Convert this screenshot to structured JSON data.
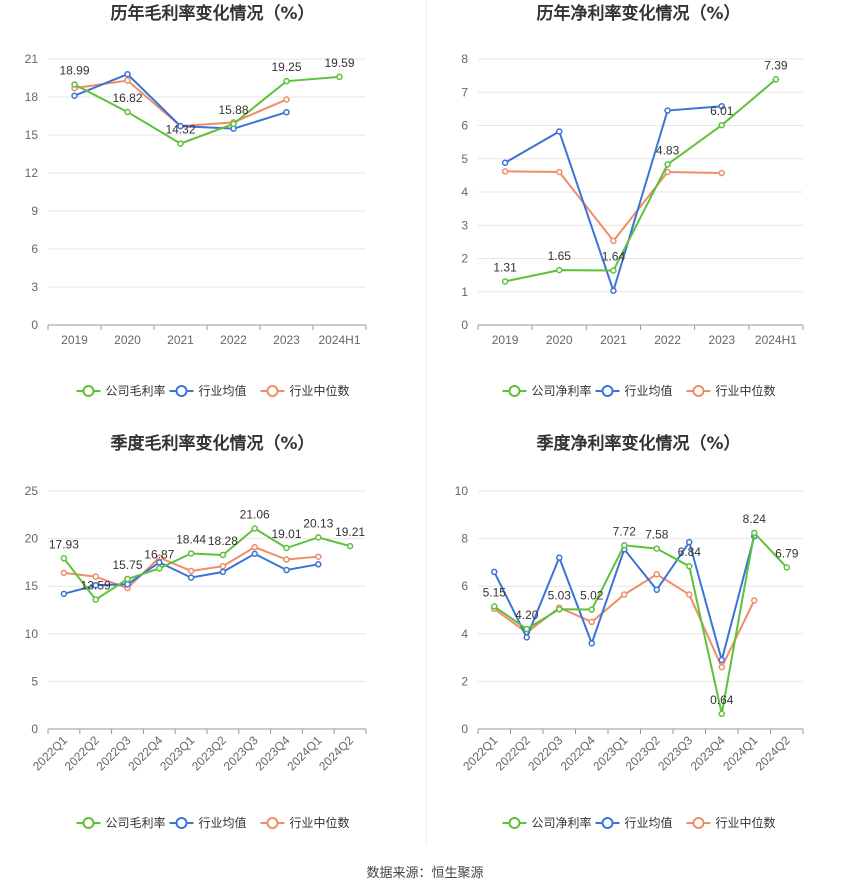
{
  "source": "数据来源：恒生聚源",
  "colors": {
    "company": "#5cc23c",
    "avg": "#3b73d6",
    "median": "#f08c68"
  },
  "chart_data": [
    {
      "type": "line",
      "title": "历年毛利率变化情况（%）",
      "categories": [
        "2019",
        "2020",
        "2021",
        "2022",
        "2023",
        "2024H1"
      ],
      "ylim": [
        0,
        21
      ],
      "yticks": [
        0,
        3,
        6,
        9,
        12,
        15,
        18,
        21
      ],
      "rotate": false,
      "series": [
        {
          "name": "公司毛利率",
          "key": "company",
          "values": [
            18.99,
            16.82,
            14.32,
            15.88,
            19.25,
            19.59
          ],
          "labels": true
        },
        {
          "name": "行业均值",
          "key": "avg",
          "values": [
            18.1,
            19.8,
            15.7,
            15.5,
            16.8,
            null
          ],
          "labels": false
        },
        {
          "name": "行业中位数",
          "key": "median",
          "values": [
            18.7,
            19.3,
            15.7,
            16.0,
            17.8,
            null
          ],
          "labels": false
        }
      ]
    },
    {
      "type": "line",
      "title": "历年净利率变化情况（%）",
      "categories": [
        "2019",
        "2020",
        "2021",
        "2022",
        "2023",
        "2024H1"
      ],
      "ylim": [
        0,
        8
      ],
      "yticks": [
        0,
        1,
        2,
        3,
        4,
        5,
        6,
        7,
        8
      ],
      "rotate": false,
      "series": [
        {
          "name": "公司净利率",
          "key": "company",
          "values": [
            1.31,
            1.65,
            1.64,
            4.83,
            6.01,
            7.39
          ],
          "labels": true
        },
        {
          "name": "行业均值",
          "key": "avg",
          "values": [
            4.88,
            5.82,
            1.03,
            6.45,
            6.58,
            null
          ],
          "labels": false
        },
        {
          "name": "行业中位数",
          "key": "median",
          "values": [
            4.62,
            4.6,
            2.53,
            4.6,
            4.57,
            null
          ],
          "labels": false
        }
      ]
    },
    {
      "type": "line",
      "title": "季度毛利率变化情况（%）",
      "categories": [
        "2022Q1",
        "2022Q2",
        "2022Q3",
        "2022Q4",
        "2023Q1",
        "2023Q2",
        "2023Q3",
        "2023Q4",
        "2024Q1",
        "2024Q2"
      ],
      "ylim": [
        0,
        25
      ],
      "yticks": [
        0,
        5,
        10,
        15,
        20,
        25
      ],
      "rotate": true,
      "series": [
        {
          "name": "公司毛利率",
          "key": "company",
          "values": [
            17.93,
            13.59,
            15.75,
            16.87,
            18.44,
            18.28,
            21.06,
            19.01,
            20.13,
            19.21
          ],
          "labels": true
        },
        {
          "name": "行业均值",
          "key": "avg",
          "values": [
            14.2,
            15.1,
            15.2,
            17.5,
            15.9,
            16.5,
            18.4,
            16.7,
            17.3,
            null
          ],
          "labels": false
        },
        {
          "name": "行业中位数",
          "key": "median",
          "values": [
            16.4,
            16.0,
            14.8,
            18.0,
            16.6,
            17.1,
            19.1,
            17.8,
            18.1,
            null
          ],
          "labels": false
        }
      ]
    },
    {
      "type": "line",
      "title": "季度净利率变化情况（%）",
      "categories": [
        "2022Q1",
        "2022Q2",
        "2022Q3",
        "2022Q4",
        "2023Q1",
        "2023Q2",
        "2023Q3",
        "2023Q4",
        "2024Q1",
        "2024Q2"
      ],
      "ylim": [
        0,
        10
      ],
      "yticks": [
        0,
        2,
        4,
        6,
        8,
        10
      ],
      "rotate": true,
      "series": [
        {
          "name": "公司净利率",
          "key": "company",
          "values": [
            5.15,
            4.2,
            5.03,
            5.02,
            7.72,
            7.58,
            6.84,
            0.64,
            8.24,
            6.79
          ],
          "labels": true
        },
        {
          "name": "行业均值",
          "key": "avg",
          "values": [
            6.6,
            3.85,
            7.2,
            3.6,
            7.55,
            5.85,
            7.85,
            2.9,
            8.1,
            null
          ],
          "labels": false
        },
        {
          "name": "行业中位数",
          "key": "median",
          "values": [
            5.05,
            4.05,
            5.1,
            4.5,
            5.65,
            6.5,
            5.65,
            2.6,
            5.4,
            null
          ],
          "labels": false
        }
      ]
    }
  ]
}
